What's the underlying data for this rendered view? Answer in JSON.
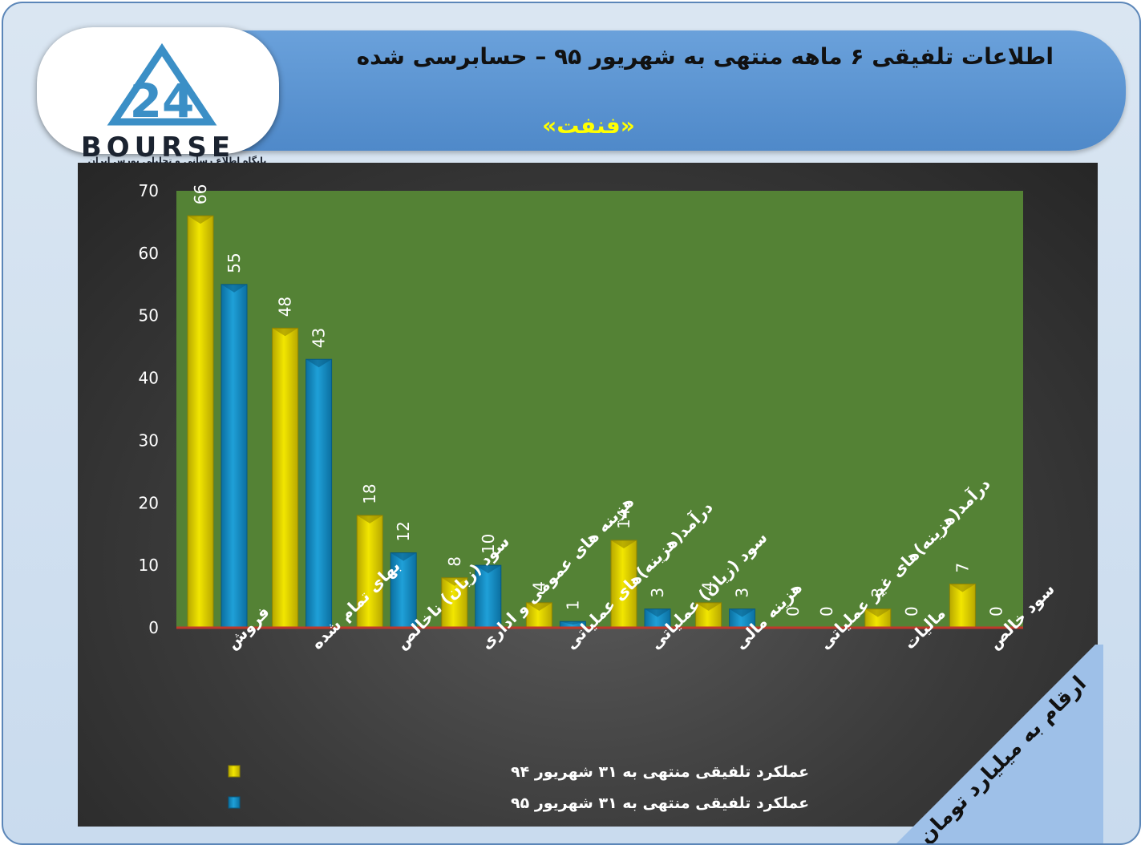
{
  "header": {
    "title": "اطلاعات تلفیقی ۶ ماهه منتهی به شهریور ۹۵ – حسابرسی شده",
    "company": "«فنفت»"
  },
  "logo": {
    "text": "BOURSE",
    "numeral": "24",
    "subtitle": "پایگاه اطلاع رسانی و تحلیلی بورس ایران"
  },
  "unit_note": "ارقام به میلیارد تومان",
  "colors": {
    "plot_area": "#548235",
    "series_94": "#f2e600",
    "series_95": "#1fa0d8",
    "baseline": "#c0392b"
  },
  "chart_data": {
    "type": "bar",
    "categories": [
      "فروش",
      "بهای تمام شده",
      "سود (زیان) ناخالص",
      "هزینه های عمومی و اداری",
      "درآمد(هزینه)های عملیاتی",
      "سود (زیان) عملیاتی",
      "هزینه مالی",
      "درآمد(هزینه)های غیر عملیاتی",
      "مالیات",
      "سود خالص"
    ],
    "series": [
      {
        "name": "عملکرد تلفیقی منتهی به ۳۱ شهریور ۹۴",
        "values": [
          66,
          48,
          18,
          8,
          4,
          14,
          4,
          0,
          3,
          7
        ]
      },
      {
        "name": "عملکرد تلفیقی منتهی به ۳۱ شهریور ۹۵",
        "values": [
          55,
          43,
          12,
          10,
          1,
          3,
          3,
          0,
          0,
          0
        ]
      }
    ],
    "ylim": [
      0,
      70
    ],
    "yticks": [
      0,
      10,
      20,
      30,
      40,
      50,
      60,
      70
    ],
    "grid": false,
    "legend": "bottom-left"
  }
}
